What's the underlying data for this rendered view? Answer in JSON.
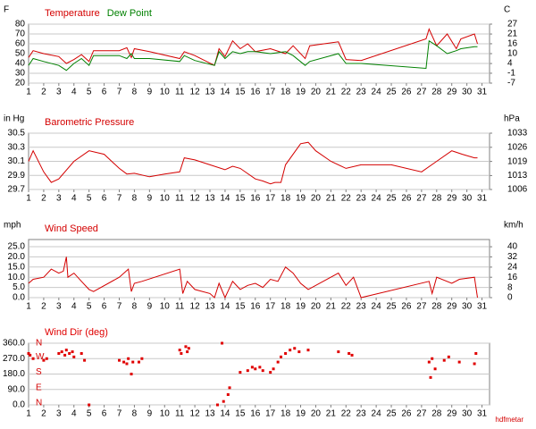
{
  "chart_data": [
    {
      "type": "line",
      "ylabel": "F",
      "y2label": "C",
      "x": [
        1,
        1.3,
        2,
        3,
        3.5,
        4,
        4.5,
        5,
        5.3,
        7,
        7.5,
        7.8,
        8,
        9,
        11,
        11.3,
        12,
        13.3,
        13.6,
        14,
        14.5,
        15,
        15.5,
        16,
        17,
        18,
        18.5,
        19.3,
        19.6,
        21.5,
        22,
        23,
        27.3,
        27.5,
        28,
        28.7,
        29.3,
        29.6,
        30.5,
        30.7
      ],
      "series": [
        {
          "name": "Temperature",
          "color": "#d40000",
          "values": [
            46,
            53,
            50,
            47,
            40,
            44,
            49,
            42,
            53,
            53,
            56,
            46,
            55,
            52,
            45,
            52,
            48,
            38,
            55,
            47,
            63,
            55,
            60,
            52,
            55,
            50,
            58,
            45,
            58,
            62,
            44,
            43,
            65,
            75,
            58,
            70,
            55,
            65,
            70,
            60
          ]
        },
        {
          "name": "Dew Point",
          "color": "#008000",
          "values": [
            38,
            45,
            42,
            38,
            33,
            40,
            45,
            38,
            48,
            48,
            45,
            50,
            45,
            45,
            42,
            48,
            43,
            38,
            52,
            45,
            52,
            50,
            52,
            52,
            50,
            52,
            48,
            38,
            42,
            50,
            40,
            40,
            35,
            63,
            58,
            50,
            53,
            55,
            57,
            57
          ]
        }
      ],
      "xlim": [
        1,
        31.5
      ],
      "xticks": [
        1,
        2,
        3,
        4,
        5,
        6,
        7,
        8,
        9,
        10,
        11,
        12,
        13,
        14,
        15,
        16,
        17,
        18,
        19,
        20,
        21,
        22,
        23,
        24,
        25,
        26,
        27,
        28,
        29,
        30,
        31
      ],
      "ylim": [
        20,
        80
      ],
      "yticks": [
        20,
        30,
        40,
        50,
        60,
        70,
        80
      ],
      "y2lim": [
        -6.7,
        26.7
      ],
      "y2ticks": [
        {
          "value": -6.7,
          "label": "-7"
        },
        {
          "value": -1.1,
          "label": "-1"
        },
        {
          "value": 4.4,
          "label": "4"
        },
        {
          "value": 10,
          "label": "10"
        },
        {
          "value": 15.6,
          "label": "16"
        },
        {
          "value": 21.1,
          "label": "21"
        },
        {
          "value": 26.7,
          "label": "27"
        }
      ],
      "grid": true
    },
    {
      "type": "line",
      "title": "Barometric Pressure",
      "ylabel": "in Hg",
      "y2label": "hPa",
      "color": "#d40000",
      "x": [
        1,
        1.3,
        2,
        2.5,
        3,
        4,
        5,
        6,
        7,
        7.5,
        8,
        9,
        10,
        11,
        11.3,
        12,
        13,
        14,
        14.5,
        15,
        16,
        16.5,
        17,
        17.3,
        17.7,
        18,
        19,
        19.5,
        20,
        21,
        22,
        23,
        25,
        27,
        28,
        29,
        29.7,
        30.5,
        30.7
      ],
      "values": [
        30.1,
        30.25,
        29.95,
        29.8,
        29.85,
        30.1,
        30.25,
        30.2,
        30.0,
        29.92,
        29.93,
        29.88,
        29.92,
        29.95,
        30.15,
        30.12,
        30.05,
        29.98,
        30.03,
        30.0,
        29.85,
        29.82,
        29.78,
        29.8,
        29.8,
        30.05,
        30.35,
        30.37,
        30.25,
        30.1,
        30.0,
        30.05,
        30.05,
        29.95,
        30.1,
        30.25,
        30.2,
        30.15,
        30.15
      ],
      "xlim": [
        1,
        31.5
      ],
      "xticks": [
        1,
        2,
        3,
        4,
        5,
        6,
        7,
        8,
        9,
        10,
        11,
        12,
        13,
        14,
        15,
        16,
        17,
        18,
        19,
        20,
        21,
        22,
        23,
        24,
        25,
        26,
        27,
        28,
        29,
        30,
        31
      ],
      "ylim": [
        29.7,
        30.5
      ],
      "yticks": [
        29.7,
        29.9,
        30.1,
        30.3,
        30.5
      ],
      "y2lim": [
        1005.8,
        1032.9
      ],
      "y2ticks": [
        {
          "value": 1005.8,
          "label": "1006"
        },
        {
          "value": 1012.5,
          "label": "1013"
        },
        {
          "value": 1019.3,
          "label": "1019"
        },
        {
          "value": 1026.1,
          "label": "1026"
        },
        {
          "value": 1032.9,
          "label": "1033"
        }
      ],
      "grid": true
    },
    {
      "type": "line",
      "title": "Wind Speed",
      "ylabel": "mph",
      "y2label": "km/h",
      "color": "#d40000",
      "x": [
        1,
        1.3,
        2,
        2.5,
        3,
        3.3,
        3.5,
        3.6,
        4,
        4.5,
        5,
        5.3,
        7,
        7.6,
        7.8,
        8,
        8.5,
        11,
        11.2,
        11.5,
        12,
        13,
        13.3,
        13.6,
        14,
        14.5,
        15,
        15.5,
        16,
        16.5,
        17,
        17.5,
        18,
        18.5,
        19,
        19.5,
        21.5,
        22,
        22.5,
        23,
        27.5,
        27.7,
        28,
        29,
        29.5,
        30.5,
        30.7
      ],
      "values": [
        7,
        9,
        10,
        14,
        12,
        13,
        20,
        10,
        12,
        8,
        4,
        3,
        10,
        14,
        3,
        7,
        8,
        14,
        2,
        8,
        4,
        2,
        0,
        7,
        0,
        8,
        4,
        6,
        7,
        5,
        9,
        8,
        15,
        12,
        7,
        4,
        12,
        6,
        10,
        0,
        8,
        2,
        10,
        7,
        9,
        10,
        0
      ],
      "xlim": [
        1,
        31.5
      ],
      "xticks": [
        1,
        2,
        3,
        4,
        5,
        6,
        7,
        8,
        9,
        10,
        11,
        12,
        13,
        14,
        15,
        16,
        17,
        18,
        19,
        20,
        21,
        22,
        23,
        24,
        25,
        26,
        27,
        28,
        29,
        30,
        31
      ],
      "ylim": [
        0,
        28.5
      ],
      "yticks": [
        {
          "value": 0,
          "label": "0.0"
        },
        {
          "value": 5,
          "label": "5.0"
        },
        {
          "value": 10,
          "label": "10.0"
        },
        {
          "value": 15,
          "label": "15.0"
        },
        {
          "value": 20,
          "label": "20.0"
        },
        {
          "value": 25,
          "label": "25.0"
        }
      ],
      "y2lim": [
        0,
        45.9
      ],
      "y2ticks": [
        0,
        {
          "value": 8,
          "label": "8"
        },
        {
          "value": 16.1,
          "label": "16"
        },
        {
          "value": 24.1,
          "label": "24"
        },
        {
          "value": 32.2,
          "label": "32"
        },
        {
          "value": 40.2,
          "label": "40"
        }
      ],
      "grid": true
    },
    {
      "type": "scatter",
      "title": "Wind Dir (deg)",
      "color": "#e00000",
      "x": [
        1,
        1.1,
        1.3,
        2,
        2.2,
        3,
        3.2,
        3.4,
        3.5,
        3.7,
        3.9,
        4,
        4.5,
        4.7,
        5,
        7,
        7.3,
        7.5,
        7.6,
        7.8,
        7.9,
        8.3,
        8.5,
        11,
        11.1,
        11.4,
        11.5,
        11.6,
        13.5,
        13.8,
        13.9,
        14.2,
        14.3,
        15,
        15.5,
        15.8,
        16,
        16.3,
        16.5,
        17,
        17.2,
        17.5,
        17.7,
        18,
        18.3,
        18.6,
        18.9,
        19.5,
        21.5,
        22.2,
        22.4,
        27.5,
        27.6,
        27.7,
        27.9,
        28.5,
        28.8,
        29.5,
        30.5,
        30.6
      ],
      "y": [
        300,
        290,
        270,
        260,
        270,
        300,
        310,
        290,
        320,
        300,
        310,
        280,
        300,
        260,
        0,
        260,
        250,
        240,
        270,
        180,
        250,
        250,
        270,
        320,
        300,
        340,
        310,
        330,
        0,
        360,
        20,
        60,
        100,
        190,
        200,
        220,
        210,
        220,
        200,
        190,
        210,
        250,
        280,
        300,
        320,
        330,
        310,
        320,
        310,
        300,
        290,
        250,
        160,
        270,
        210,
        260,
        280,
        250,
        240,
        300
      ],
      "xlim": [
        1,
        31.5
      ],
      "xticks": [
        1,
        2,
        3,
        4,
        5,
        6,
        7,
        8,
        9,
        10,
        11,
        12,
        13,
        14,
        15,
        16,
        17,
        18,
        19,
        20,
        21,
        22,
        23,
        24,
        25,
        26,
        27,
        28,
        29,
        30,
        31
      ],
      "ylim": [
        0,
        360
      ],
      "yticks": [
        {
          "value": 0,
          "label": "0.0"
        },
        {
          "value": 90,
          "label": "90.0"
        },
        {
          "value": 180,
          "label": "180.0"
        },
        {
          "value": 270,
          "label": "270.0"
        },
        {
          "value": 360,
          "label": "360.0"
        }
      ],
      "compass_ticks": [
        {
          "value": 0,
          "label": "N"
        },
        {
          "value": 90,
          "label": "E"
        },
        {
          "value": 180,
          "label": "S"
        },
        {
          "value": 270,
          "label": "W"
        },
        {
          "value": 360,
          "label": "N"
        }
      ],
      "grid": true
    }
  ],
  "footer": "hdfmetar"
}
